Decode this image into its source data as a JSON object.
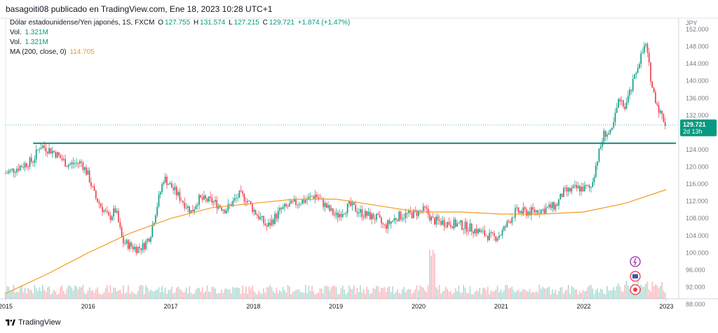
{
  "header": {
    "publisher_line": "basagoiti08 publicado en TradingView.com, Ene 18, 2023 10:28 UTC+1"
  },
  "legend": {
    "symbol": "Dólar estadounidense/Yen japonés, 1S, FXCM",
    "open_label": "O",
    "open": "127.755",
    "high_label": "H",
    "high": "131.574",
    "low_label": "L",
    "low": "127.215",
    "close_label": "C",
    "close": "129.721",
    "change": "+1.874 (+1.47%)",
    "vol1_label": "Vol.",
    "vol1": "1.321M",
    "vol2_label": "Vol.",
    "vol2": "1.321M",
    "ma_label": "MA (200, close, 0)",
    "ma": "114.705"
  },
  "price_axis": {
    "currency": "JPY",
    "labels": [
      "152.000",
      "148.000",
      "144.000",
      "140.000",
      "136.000",
      "132.000",
      "124.000",
      "120.000",
      "116.000",
      "112.000",
      "108.000",
      "104.000",
      "100.000",
      "96.000",
      "92.000",
      "88.000"
    ],
    "last_price": "129.721",
    "countdown": "2d 13h"
  },
  "time_axis": {
    "labels": [
      "2015",
      "2016",
      "2017",
      "2018",
      "2019",
      "2020",
      "2021",
      "2022",
      "2023"
    ]
  },
  "footer": {
    "brand": "TradingView"
  },
  "colors": {
    "up": "#089981",
    "down": "#f23645",
    "ma": "#f59a23",
    "hline": "#0f8a7a",
    "axis_text": "#787b86"
  },
  "chart_data": {
    "type": "candlestick",
    "title": "Dólar estadounidense/Yen japonés, 1S, FXCM",
    "x_range": [
      "2015-01",
      "2023-01"
    ],
    "ylim": [
      88,
      152
    ],
    "close_series": [
      {
        "date": "2015-01",
        "value": 118.5
      },
      {
        "date": "2015-03",
        "value": 120.0
      },
      {
        "date": "2015-05",
        "value": 121.5
      },
      {
        "date": "2015-06",
        "value": 125.0
      },
      {
        "date": "2015-08",
        "value": 123.5
      },
      {
        "date": "2015-10",
        "value": 120.5
      },
      {
        "date": "2015-12",
        "value": 121.0
      },
      {
        "date": "2016-01",
        "value": 118.0
      },
      {
        "date": "2016-02",
        "value": 113.0
      },
      {
        "date": "2016-04",
        "value": 108.0
      },
      {
        "date": "2016-05",
        "value": 110.0
      },
      {
        "date": "2016-06",
        "value": 102.5
      },
      {
        "date": "2016-08",
        "value": 101.0
      },
      {
        "date": "2016-09",
        "value": 101.5
      },
      {
        "date": "2016-10",
        "value": 104.0
      },
      {
        "date": "2016-11",
        "value": 111.0
      },
      {
        "date": "2016-12",
        "value": 117.5
      },
      {
        "date": "2017-02",
        "value": 113.5
      },
      {
        "date": "2017-04",
        "value": 109.5
      },
      {
        "date": "2017-05",
        "value": 112.5
      },
      {
        "date": "2017-07",
        "value": 112.0
      },
      {
        "date": "2017-09",
        "value": 110.0
      },
      {
        "date": "2017-11",
        "value": 113.5
      },
      {
        "date": "2017-12",
        "value": 112.5
      },
      {
        "date": "2018-01",
        "value": 110.0
      },
      {
        "date": "2018-03",
        "value": 106.0
      },
      {
        "date": "2018-05",
        "value": 110.0
      },
      {
        "date": "2018-07",
        "value": 111.5
      },
      {
        "date": "2018-09",
        "value": 112.5
      },
      {
        "date": "2018-10",
        "value": 113.5
      },
      {
        "date": "2018-12",
        "value": 110.0
      },
      {
        "date": "2019-01",
        "value": 108.5
      },
      {
        "date": "2019-03",
        "value": 111.0
      },
      {
        "date": "2019-05",
        "value": 109.0
      },
      {
        "date": "2019-07",
        "value": 108.0
      },
      {
        "date": "2019-08",
        "value": 106.0
      },
      {
        "date": "2019-10",
        "value": 108.5
      },
      {
        "date": "2019-12",
        "value": 109.0
      },
      {
        "date": "2020-02",
        "value": 110.0
      },
      {
        "date": "2020-03",
        "value": 107.5
      },
      {
        "date": "2020-05",
        "value": 107.0
      },
      {
        "date": "2020-07",
        "value": 106.5
      },
      {
        "date": "2020-09",
        "value": 105.5
      },
      {
        "date": "2020-11",
        "value": 104.0
      },
      {
        "date": "2020-12",
        "value": 103.5
      },
      {
        "date": "2021-01",
        "value": 104.5
      },
      {
        "date": "2021-03",
        "value": 109.5
      },
      {
        "date": "2021-05",
        "value": 109.5
      },
      {
        "date": "2021-07",
        "value": 110.0
      },
      {
        "date": "2021-09",
        "value": 111.0
      },
      {
        "date": "2021-10",
        "value": 114.0
      },
      {
        "date": "2021-12",
        "value": 115.0
      },
      {
        "date": "2022-02",
        "value": 115.0
      },
      {
        "date": "2022-03",
        "value": 122.0
      },
      {
        "date": "2022-04",
        "value": 128.0
      },
      {
        "date": "2022-05",
        "value": 127.5
      },
      {
        "date": "2022-06",
        "value": 135.0
      },
      {
        "date": "2022-07",
        "value": 134.0
      },
      {
        "date": "2022-08",
        "value": 138.5
      },
      {
        "date": "2022-09",
        "value": 144.5
      },
      {
        "date": "2022-10",
        "value": 148.5
      },
      {
        "date": "2022-11",
        "value": 138.0
      },
      {
        "date": "2022-12",
        "value": 133.0
      },
      {
        "date": "2023-01",
        "value": 129.7
      }
    ],
    "ma200": [
      {
        "date": "2015-01",
        "value": 90.5
      },
      {
        "date": "2015-07",
        "value": 95.0
      },
      {
        "date": "2016-01",
        "value": 100.0
      },
      {
        "date": "2016-07",
        "value": 104.5
      },
      {
        "date": "2017-01",
        "value": 108.0
      },
      {
        "date": "2017-07",
        "value": 110.5
      },
      {
        "date": "2018-01",
        "value": 111.5
      },
      {
        "date": "2018-07",
        "value": 112.5
      },
      {
        "date": "2019-01",
        "value": 112.5
      },
      {
        "date": "2019-07",
        "value": 111.0
      },
      {
        "date": "2020-01",
        "value": 109.5
      },
      {
        "date": "2020-07",
        "value": 109.5
      },
      {
        "date": "2021-01",
        "value": 109.0
      },
      {
        "date": "2021-07",
        "value": 109.0
      },
      {
        "date": "2022-01",
        "value": 109.5
      },
      {
        "date": "2022-07",
        "value": 111.5
      },
      {
        "date": "2023-01",
        "value": 114.7
      }
    ],
    "horizontal_line": 125.5,
    "last_price": 129.721
  }
}
